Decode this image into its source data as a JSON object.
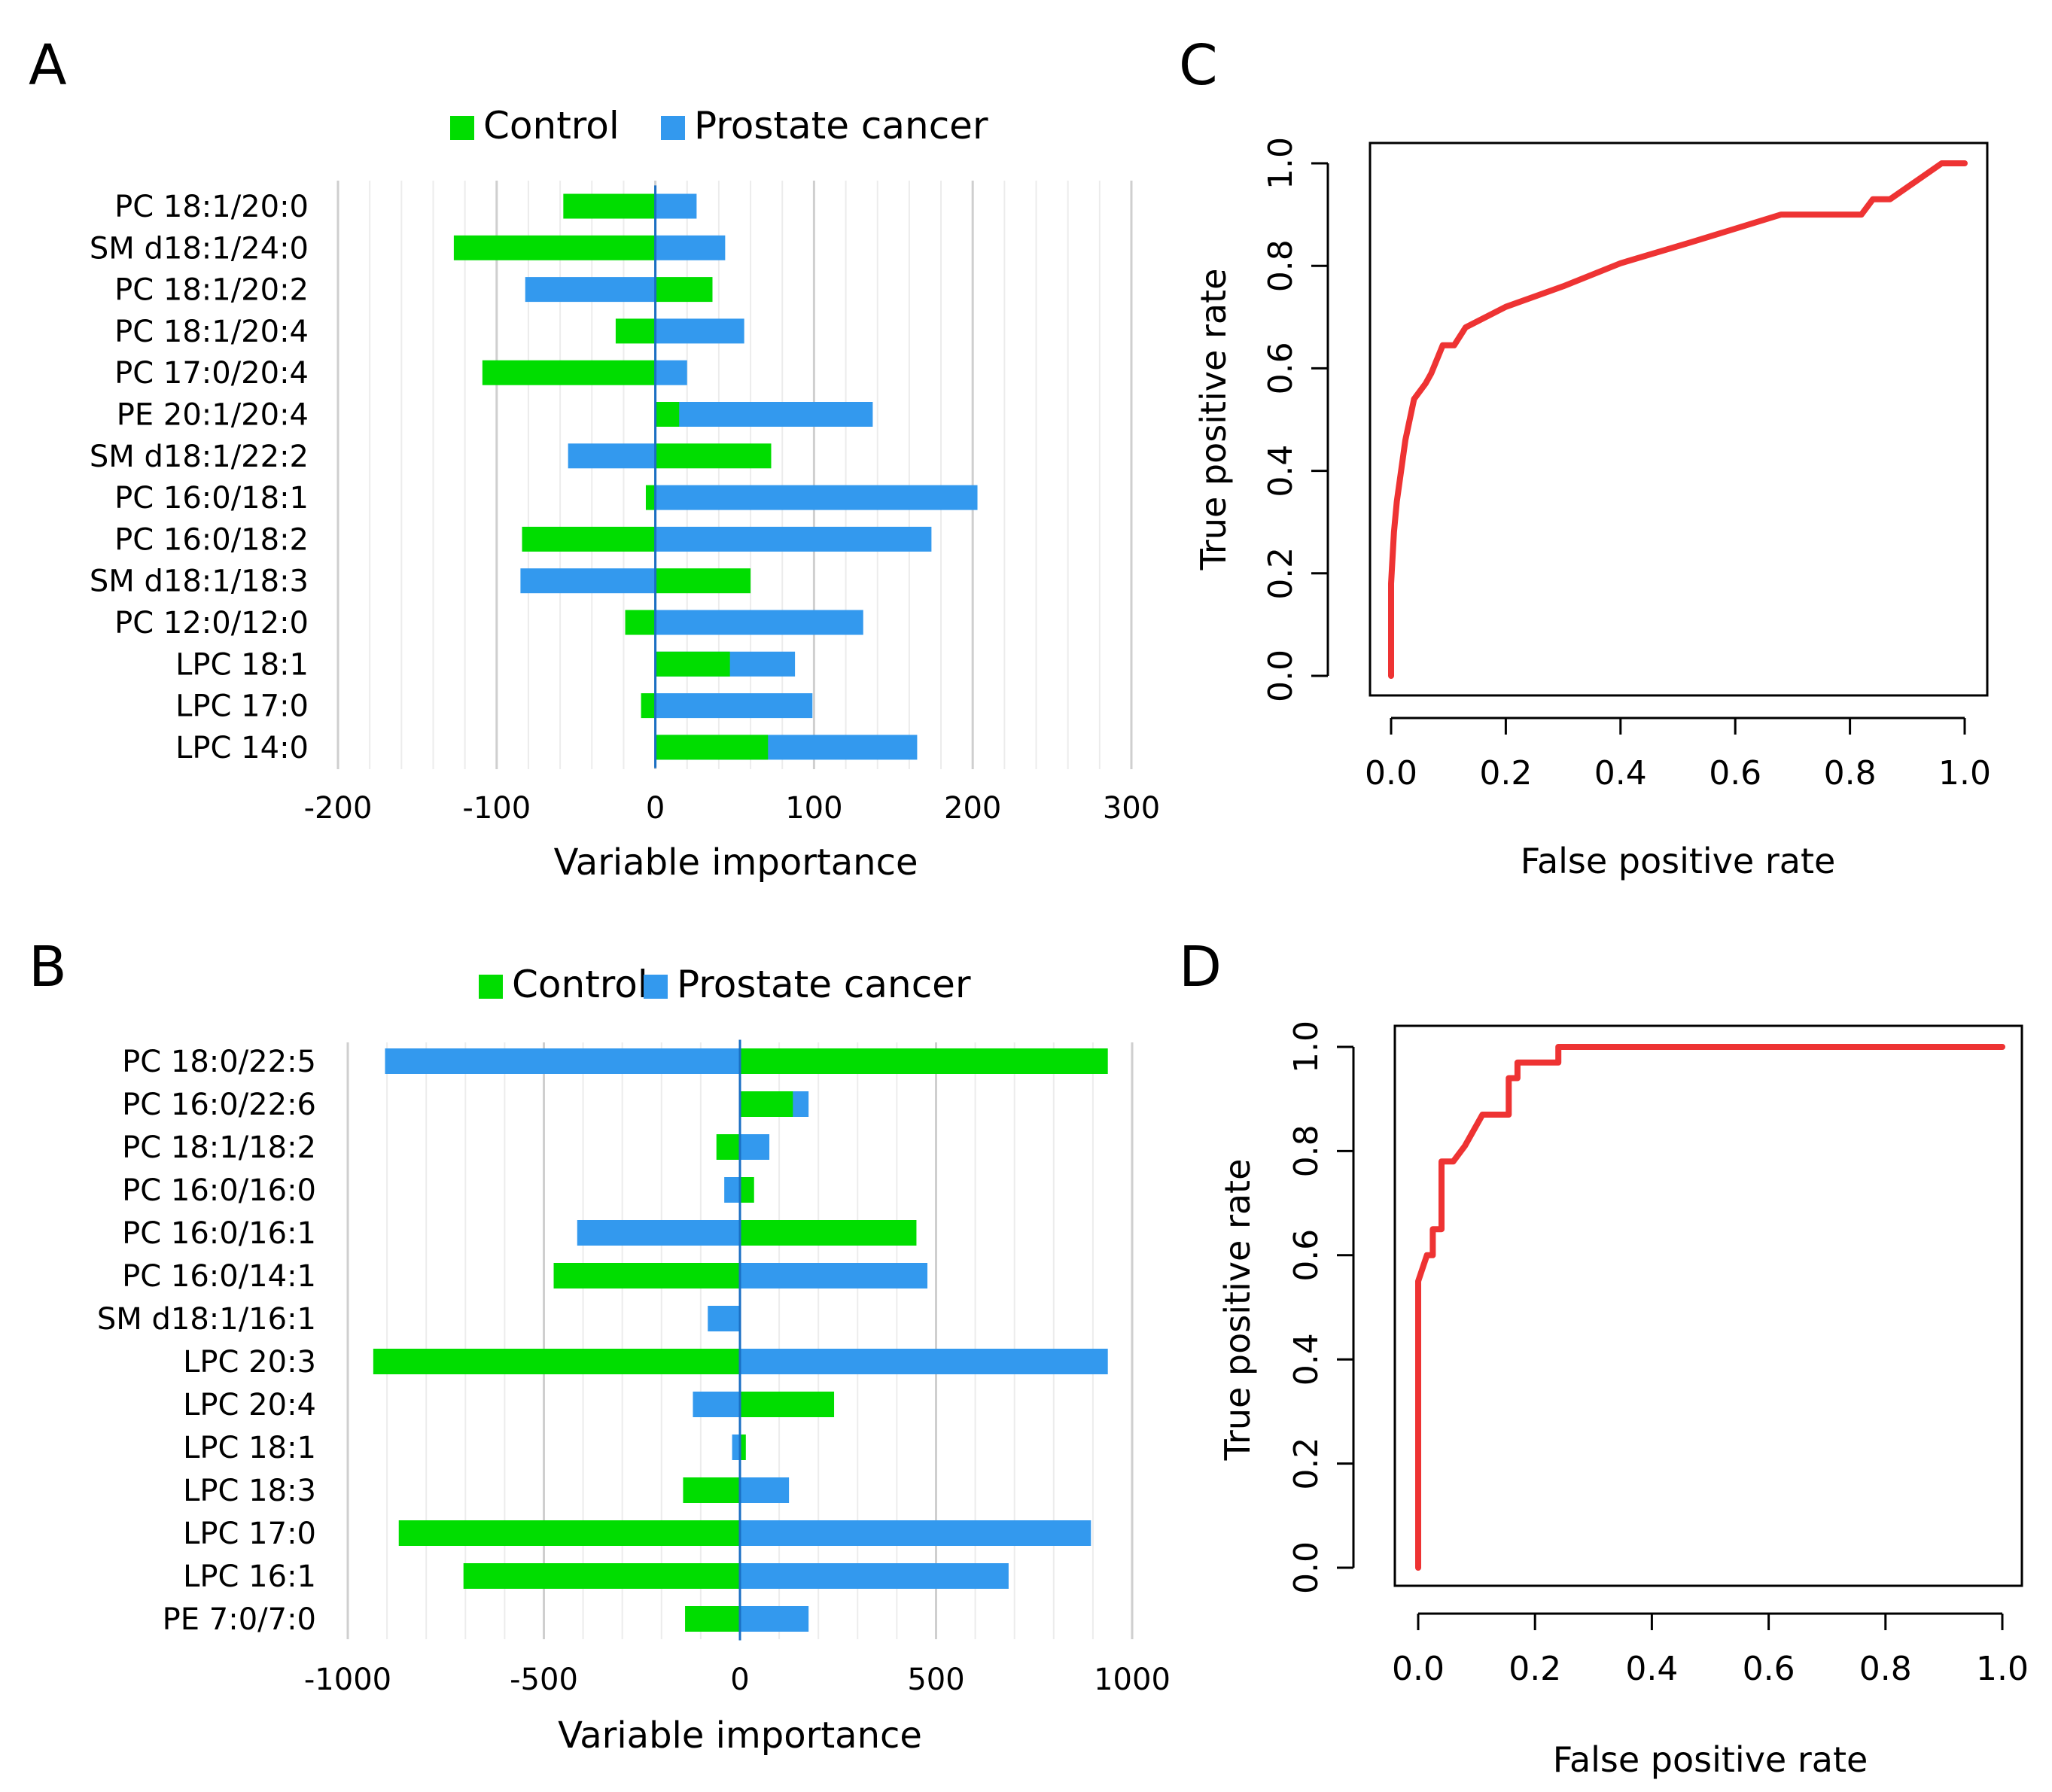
{
  "colors": {
    "control": "#00dd00",
    "cancer": "#3399ee",
    "roc_line": "#ee3333",
    "grid": "#dddddd",
    "zero_axis": "#1a6fc4"
  },
  "panels": {
    "A": "A",
    "B": "B",
    "C": "C",
    "D": "D"
  },
  "chart_data": [
    {
      "id": "A",
      "type": "bar",
      "orientation": "horizontal",
      "title": "",
      "xlabel": "Variable importance",
      "ylabel": "",
      "xlim": [
        -200,
        300
      ],
      "xticks": [
        -200,
        -100,
        0,
        100,
        200,
        300
      ],
      "xtick_labels": [
        "-200",
        "-100",
        "0",
        "100",
        "200",
        "300"
      ],
      "legend": [
        "Control",
        "Prostate cancer"
      ],
      "categories": [
        "PC 18:1/20:0",
        "SM d18:1/24:0",
        "PC 18:1/20:2",
        "PC 18:1/20:4",
        "PC 17:0/20:4",
        "PE 20:1/20:4",
        "SM d18:1/22:2",
        "PC 16:0/18:1",
        "PC 16:0/18:2",
        "SM d18:1/18:3",
        "PC 12:0/12:0",
        "LPC 18:1",
        "LPC 17:0",
        "LPC 14:0"
      ],
      "series": [
        {
          "name": "Control",
          "values": [
            -58,
            -127,
            36,
            -25,
            -109,
            15,
            73,
            -6,
            -84,
            60,
            -19,
            47,
            -9,
            71
          ]
        },
        {
          "name": "Prostate cancer",
          "values": [
            26,
            44,
            -82,
            56,
            20,
            137,
            -55,
            203,
            174,
            -85,
            131,
            88,
            99,
            165
          ]
        }
      ]
    },
    {
      "id": "B",
      "type": "bar",
      "orientation": "horizontal",
      "title": "",
      "xlabel": "Variable importance",
      "ylabel": "",
      "xlim": [
        -1000,
        1000
      ],
      "xticks": [
        -1000,
        -500,
        0,
        500,
        1000
      ],
      "xtick_labels": [
        "-1000",
        "-500",
        "0",
        "500",
        "1000"
      ],
      "legend": [
        "Control",
        "Prostate cancer"
      ],
      "categories": [
        "PC 18:0/22:5",
        "PC 16:0/22:6",
        "PC 18:1/18:2",
        "PC 16:0/16:0",
        "PC 16:0/16:1",
        "PC 16:0/14:1",
        "SM d18:1/16:1",
        "LPC 20:3",
        "LPC 20:4",
        "LPC 18:1",
        "LPC 18:3",
        "LPC 17:0",
        "LPC 16:1",
        "PE 7:0/7:0"
      ],
      "series": [
        {
          "name": "Control",
          "values": [
            938,
            135,
            -60,
            36,
            450,
            -475,
            0,
            -935,
            240,
            15,
            -145,
            -870,
            -705,
            -140
          ]
        },
        {
          "name": "Prostate cancer",
          "values": [
            -905,
            175,
            75,
            -40,
            -415,
            478,
            -82,
            938,
            -120,
            -20,
            125,
            895,
            685,
            175
          ]
        }
      ]
    },
    {
      "id": "C",
      "type": "line",
      "title": "",
      "xlabel": "False positive rate",
      "ylabel": "True positive rate",
      "xlim": [
        0,
        1
      ],
      "ylim": [
        0,
        1
      ],
      "xticks": [
        "0.0",
        "0.2",
        "0.4",
        "0.6",
        "0.8",
        "1.0"
      ],
      "yticks": [
        "0.0",
        "0.2",
        "0.4",
        "0.6",
        "0.8",
        "1.0"
      ],
      "series": [
        {
          "name": "ROC",
          "x": [
            0,
            0,
            0.005,
            0.01,
            0.02,
            0.025,
            0.04,
            0.06,
            0.07,
            0.09,
            0.11,
            0.13,
            0.2,
            0.3,
            0.4,
            0.52,
            0.68,
            0.82,
            0.84,
            0.87,
            0.96,
            1.0
          ],
          "y": [
            0,
            0.18,
            0.28,
            0.34,
            0.42,
            0.46,
            0.54,
            0.57,
            0.59,
            0.645,
            0.645,
            0.68,
            0.72,
            0.76,
            0.805,
            0.845,
            0.9,
            0.9,
            0.93,
            0.93,
            1.0,
            1.0
          ]
        }
      ]
    },
    {
      "id": "D",
      "type": "line",
      "title": "",
      "xlabel": "False positive rate",
      "ylabel": "True positive rate",
      "xlim": [
        0,
        1
      ],
      "ylim": [
        0,
        1
      ],
      "xticks": [
        "0.0",
        "0.2",
        "0.4",
        "0.6",
        "0.8",
        "1.0"
      ],
      "yticks": [
        "0.0",
        "0.2",
        "0.4",
        "0.6",
        "0.8",
        "1.0"
      ],
      "series": [
        {
          "name": "ROC",
          "x": [
            0,
            0,
            0.015,
            0.025,
            0.025,
            0.04,
            0.04,
            0.06,
            0.08,
            0.08,
            0.11,
            0.11,
            0.135,
            0.155,
            0.155,
            0.17,
            0.17,
            0.24,
            0.24,
            1.0
          ],
          "y": [
            0,
            0.55,
            0.6,
            0.6,
            0.65,
            0.65,
            0.78,
            0.78,
            0.81,
            0.81,
            0.87,
            0.87,
            0.87,
            0.87,
            0.94,
            0.94,
            0.97,
            0.97,
            1.0,
            1.0
          ]
        }
      ]
    }
  ]
}
